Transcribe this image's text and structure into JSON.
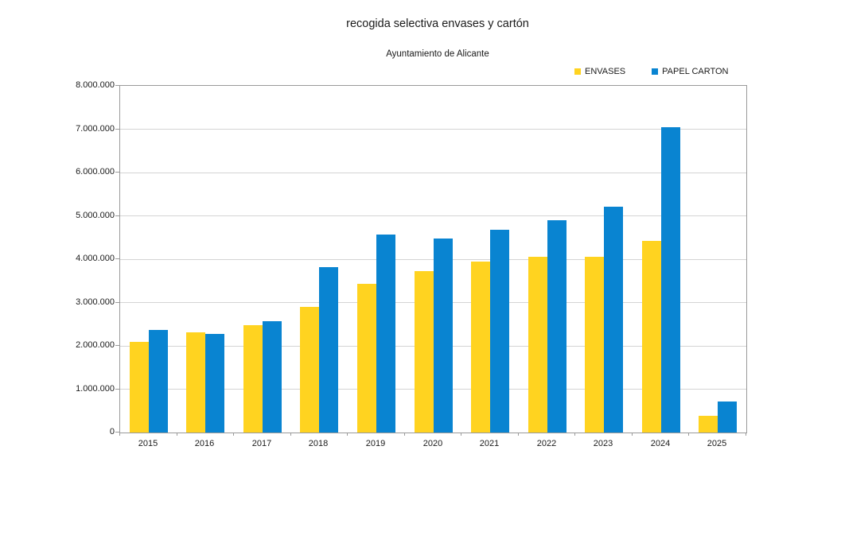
{
  "chart_data": {
    "type": "bar",
    "title": "recogida selectiva envases y cartón",
    "subtitle": "Ayuntamiento de Alicante",
    "categories": [
      "2015",
      "2016",
      "2017",
      "2018",
      "2019",
      "2020",
      "2021",
      "2022",
      "2023",
      "2024",
      "2025"
    ],
    "series": [
      {
        "name": "ENVASES",
        "color": "#FFD320",
        "values": [
          2100000,
          2320000,
          2480000,
          2900000,
          3440000,
          3730000,
          3950000,
          4060000,
          4060000,
          4430000,
          390000
        ]
      },
      {
        "name": "PAPEL CARTON",
        "color": "#0984D1",
        "values": [
          2360000,
          2280000,
          2560000,
          3820000,
          4560000,
          4480000,
          4670000,
          4900000,
          5220000,
          7050000,
          710000
        ]
      }
    ],
    "xlabel": "",
    "ylabel": "",
    "ylim": [
      0,
      8000000
    ],
    "ytick_labels": [
      "0",
      "1.000.000",
      "2.000.000",
      "3.000.000",
      "4.000.000",
      "5.000.000",
      "6.000.000",
      "7.000.000",
      "8.000.000"
    ],
    "grid": true,
    "legend_position": "top-right",
    "colors": {
      "grid": "#d4d4d4",
      "axis": "#9a9a9a",
      "text": "#1a1a1a",
      "background": "#ffffff"
    }
  }
}
